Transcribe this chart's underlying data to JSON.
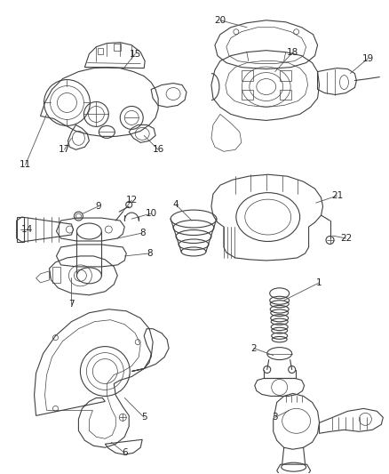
{
  "bg": "#f0f0f0",
  "fg": "#3a3a3a",
  "fig_w": 4.38,
  "fig_h": 5.33,
  "dpi": 100,
  "lw_main": 0.8,
  "lw_thin": 0.5,
  "lw_thick": 1.0,
  "label_fs": 7.5,
  "label_color": "#222222",
  "line_color": "#555555",
  "draw_color": "#404040"
}
